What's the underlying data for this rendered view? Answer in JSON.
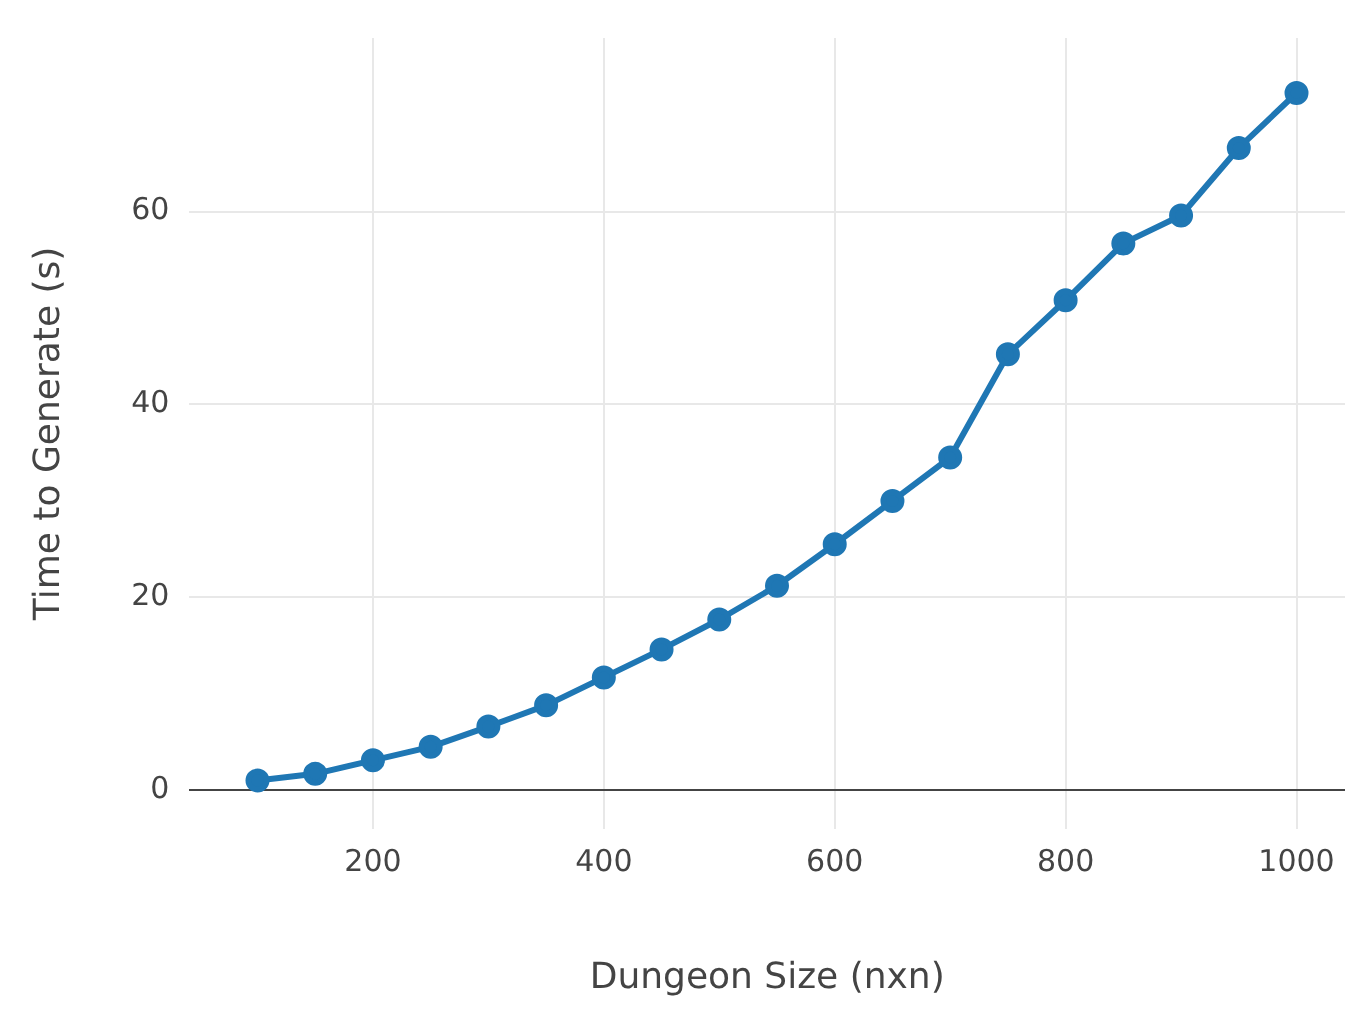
{
  "chart_data": {
    "type": "line",
    "xlabel": "Dungeon Size (nxn)",
    "ylabel": "Time to Generate (s)",
    "x": [
      100,
      150,
      200,
      250,
      300,
      350,
      400,
      450,
      500,
      550,
      600,
      650,
      700,
      750,
      800,
      850,
      900,
      950,
      1000
    ],
    "series": [
      {
        "color": "#1f77b4",
        "values": [
          1.0,
          1.7,
          3.1,
          4.5,
          6.6,
          8.8,
          11.7,
          14.6,
          17.7,
          21.2,
          25.5,
          30.0,
          34.5,
          45.2,
          50.8,
          56.7,
          59.6,
          66.6,
          72.3
        ]
      }
    ],
    "xlim": [
      41,
      1042
    ],
    "xticks": [
      200,
      400,
      600,
      800,
      1000
    ],
    "ylim": [
      -4,
      78
    ],
    "yticks": [
      0,
      20,
      40,
      60
    ],
    "grid": true,
    "legend": false,
    "marker": "circle",
    "line_style": "solid"
  }
}
